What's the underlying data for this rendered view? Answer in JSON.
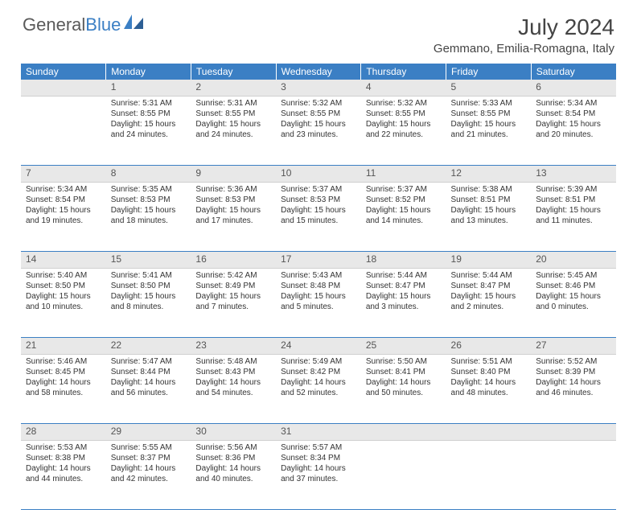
{
  "logo": {
    "text1": "General",
    "text2": "Blue"
  },
  "title": "July 2024",
  "location": "Gemmano, Emilia-Romagna, Italy",
  "colors": {
    "header_bg": "#3b7fc4",
    "header_text": "#ffffff",
    "daynum_bg": "#e8e8e8",
    "text": "#333333",
    "rule": "#3b7fc4"
  },
  "day_headers": [
    "Sunday",
    "Monday",
    "Tuesday",
    "Wednesday",
    "Thursday",
    "Friday",
    "Saturday"
  ],
  "weeks": [
    [
      {
        "num": "",
        "lines": []
      },
      {
        "num": "1",
        "lines": [
          "Sunrise: 5:31 AM",
          "Sunset: 8:55 PM",
          "Daylight: 15 hours and 24 minutes."
        ]
      },
      {
        "num": "2",
        "lines": [
          "Sunrise: 5:31 AM",
          "Sunset: 8:55 PM",
          "Daylight: 15 hours and 24 minutes."
        ]
      },
      {
        "num": "3",
        "lines": [
          "Sunrise: 5:32 AM",
          "Sunset: 8:55 PM",
          "Daylight: 15 hours and 23 minutes."
        ]
      },
      {
        "num": "4",
        "lines": [
          "Sunrise: 5:32 AM",
          "Sunset: 8:55 PM",
          "Daylight: 15 hours and 22 minutes."
        ]
      },
      {
        "num": "5",
        "lines": [
          "Sunrise: 5:33 AM",
          "Sunset: 8:55 PM",
          "Daylight: 15 hours and 21 minutes."
        ]
      },
      {
        "num": "6",
        "lines": [
          "Sunrise: 5:34 AM",
          "Sunset: 8:54 PM",
          "Daylight: 15 hours and 20 minutes."
        ]
      }
    ],
    [
      {
        "num": "7",
        "lines": [
          "Sunrise: 5:34 AM",
          "Sunset: 8:54 PM",
          "Daylight: 15 hours and 19 minutes."
        ]
      },
      {
        "num": "8",
        "lines": [
          "Sunrise: 5:35 AM",
          "Sunset: 8:53 PM",
          "Daylight: 15 hours and 18 minutes."
        ]
      },
      {
        "num": "9",
        "lines": [
          "Sunrise: 5:36 AM",
          "Sunset: 8:53 PM",
          "Daylight: 15 hours and 17 minutes."
        ]
      },
      {
        "num": "10",
        "lines": [
          "Sunrise: 5:37 AM",
          "Sunset: 8:53 PM",
          "Daylight: 15 hours and 15 minutes."
        ]
      },
      {
        "num": "11",
        "lines": [
          "Sunrise: 5:37 AM",
          "Sunset: 8:52 PM",
          "Daylight: 15 hours and 14 minutes."
        ]
      },
      {
        "num": "12",
        "lines": [
          "Sunrise: 5:38 AM",
          "Sunset: 8:51 PM",
          "Daylight: 15 hours and 13 minutes."
        ]
      },
      {
        "num": "13",
        "lines": [
          "Sunrise: 5:39 AM",
          "Sunset: 8:51 PM",
          "Daylight: 15 hours and 11 minutes."
        ]
      }
    ],
    [
      {
        "num": "14",
        "lines": [
          "Sunrise: 5:40 AM",
          "Sunset: 8:50 PM",
          "Daylight: 15 hours and 10 minutes."
        ]
      },
      {
        "num": "15",
        "lines": [
          "Sunrise: 5:41 AM",
          "Sunset: 8:50 PM",
          "Daylight: 15 hours and 8 minutes."
        ]
      },
      {
        "num": "16",
        "lines": [
          "Sunrise: 5:42 AM",
          "Sunset: 8:49 PM",
          "Daylight: 15 hours and 7 minutes."
        ]
      },
      {
        "num": "17",
        "lines": [
          "Sunrise: 5:43 AM",
          "Sunset: 8:48 PM",
          "Daylight: 15 hours and 5 minutes."
        ]
      },
      {
        "num": "18",
        "lines": [
          "Sunrise: 5:44 AM",
          "Sunset: 8:47 PM",
          "Daylight: 15 hours and 3 minutes."
        ]
      },
      {
        "num": "19",
        "lines": [
          "Sunrise: 5:44 AM",
          "Sunset: 8:47 PM",
          "Daylight: 15 hours and 2 minutes."
        ]
      },
      {
        "num": "20",
        "lines": [
          "Sunrise: 5:45 AM",
          "Sunset: 8:46 PM",
          "Daylight: 15 hours and 0 minutes."
        ]
      }
    ],
    [
      {
        "num": "21",
        "lines": [
          "Sunrise: 5:46 AM",
          "Sunset: 8:45 PM",
          "Daylight: 14 hours and 58 minutes."
        ]
      },
      {
        "num": "22",
        "lines": [
          "Sunrise: 5:47 AM",
          "Sunset: 8:44 PM",
          "Daylight: 14 hours and 56 minutes."
        ]
      },
      {
        "num": "23",
        "lines": [
          "Sunrise: 5:48 AM",
          "Sunset: 8:43 PM",
          "Daylight: 14 hours and 54 minutes."
        ]
      },
      {
        "num": "24",
        "lines": [
          "Sunrise: 5:49 AM",
          "Sunset: 8:42 PM",
          "Daylight: 14 hours and 52 minutes."
        ]
      },
      {
        "num": "25",
        "lines": [
          "Sunrise: 5:50 AM",
          "Sunset: 8:41 PM",
          "Daylight: 14 hours and 50 minutes."
        ]
      },
      {
        "num": "26",
        "lines": [
          "Sunrise: 5:51 AM",
          "Sunset: 8:40 PM",
          "Daylight: 14 hours and 48 minutes."
        ]
      },
      {
        "num": "27",
        "lines": [
          "Sunrise: 5:52 AM",
          "Sunset: 8:39 PM",
          "Daylight: 14 hours and 46 minutes."
        ]
      }
    ],
    [
      {
        "num": "28",
        "lines": [
          "Sunrise: 5:53 AM",
          "Sunset: 8:38 PM",
          "Daylight: 14 hours and 44 minutes."
        ]
      },
      {
        "num": "29",
        "lines": [
          "Sunrise: 5:55 AM",
          "Sunset: 8:37 PM",
          "Daylight: 14 hours and 42 minutes."
        ]
      },
      {
        "num": "30",
        "lines": [
          "Sunrise: 5:56 AM",
          "Sunset: 8:36 PM",
          "Daylight: 14 hours and 40 minutes."
        ]
      },
      {
        "num": "31",
        "lines": [
          "Sunrise: 5:57 AM",
          "Sunset: 8:34 PM",
          "Daylight: 14 hours and 37 minutes."
        ]
      },
      {
        "num": "",
        "lines": []
      },
      {
        "num": "",
        "lines": []
      },
      {
        "num": "",
        "lines": []
      }
    ]
  ]
}
